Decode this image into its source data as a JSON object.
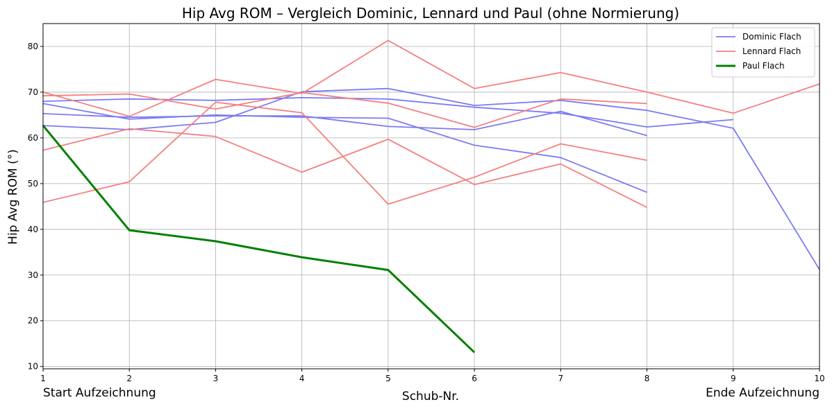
{
  "chart_data": {
    "type": "line",
    "title": "Hip Avg ROM – Vergleich Dominic, Lennard und Paul (ohne Normierung)",
    "xlabel": "Schub-Nr.",
    "ylabel": "Hip Avg ROM (°)",
    "xlim": [
      1,
      10
    ],
    "ylim": [
      9.5,
      85
    ],
    "xticks": [
      "1",
      "2",
      "3",
      "4",
      "5",
      "6",
      "7",
      "8",
      "9",
      "10"
    ],
    "yticks": [
      "10",
      "20",
      "30",
      "40",
      "50",
      "60",
      "70",
      "80"
    ],
    "grid": true,
    "legend_position": "top-right",
    "annotations": {
      "start": "Start Aufzeichnung",
      "end": "Ende Aufzeichnung"
    },
    "legend": [
      {
        "label": "Dominic Flach",
        "color": "#7b7bf5",
        "width": 1.8
      },
      {
        "label": "Lennard Flach",
        "color": "#f57f7f",
        "width": 1.8
      },
      {
        "label": "Paul Flach",
        "color": "#008000",
        "width": 3
      }
    ],
    "series": [
      {
        "name": "Dominic Flach",
        "color": "#7b7bf5",
        "width": 1.8,
        "x": [
          1,
          2,
          3,
          4,
          5,
          6,
          7,
          8,
          9,
          10
        ],
        "y": [
          68.0,
          68.5,
          68.2,
          68.8,
          68.5,
          66.7,
          65.4,
          62.4,
          64.0,
          null
        ]
      },
      {
        "name": "",
        "color": "#7b7bf5",
        "width": 1.8,
        "x": [
          1,
          2,
          3,
          4,
          5,
          6,
          7,
          8,
          9,
          10
        ],
        "y": [
          67.5,
          64.1,
          65.0,
          64.5,
          64.3,
          58.4,
          55.7,
          48.1,
          null,
          null
        ]
      },
      {
        "name": "",
        "color": "#7b7bf5",
        "width": 1.8,
        "x": [
          1,
          2,
          3,
          4,
          5,
          6,
          7,
          8,
          9,
          10
        ],
        "y": [
          65.3,
          64.5,
          64.8,
          64.8,
          62.5,
          61.8,
          65.8,
          60.5,
          null,
          null
        ]
      },
      {
        "name": "",
        "color": "#7b7bf5",
        "width": 1.8,
        "x": [
          1,
          2,
          3,
          4,
          5,
          6,
          7,
          8,
          9,
          10
        ],
        "y": [
          62.7,
          61.8,
          63.4,
          70.1,
          70.8,
          67.1,
          68.2,
          66.0,
          62.1,
          31.2
        ]
      },
      {
        "name": "Lennard Flach",
        "color": "#f57f7f",
        "width": 1.8,
        "x": [
          1,
          2,
          3,
          4,
          5,
          6,
          7,
          8,
          9,
          10
        ],
        "y": [
          69.2,
          69.6,
          66.3,
          69.9,
          67.6,
          62.3,
          68.5,
          67.5,
          null,
          null
        ]
      },
      {
        "name": "",
        "color": "#f57f7f",
        "width": 1.8,
        "x": [
          1,
          2,
          3,
          4,
          5,
          6,
          7,
          8,
          9,
          10
        ],
        "y": [
          70.0,
          64.7,
          72.8,
          69.7,
          81.3,
          70.8,
          74.3,
          70.0,
          65.4,
          71.8
        ]
      },
      {
        "name": "",
        "color": "#f57f7f",
        "width": 1.8,
        "x": [
          1,
          2,
          3,
          4,
          5,
          6,
          7,
          8,
          9,
          10
        ],
        "y": [
          57.3,
          62.0,
          60.3,
          52.5,
          59.7,
          49.8,
          54.3,
          44.8,
          null,
          null
        ]
      },
      {
        "name": "",
        "color": "#f57f7f",
        "width": 1.8,
        "x": [
          1,
          2,
          3,
          4,
          5,
          6,
          7,
          8,
          9,
          10
        ],
        "y": [
          45.9,
          50.4,
          67.8,
          65.5,
          45.5,
          51.4,
          58.7,
          55.1,
          null,
          null
        ]
      },
      {
        "name": "Paul Flach",
        "color": "#008000",
        "width": 3,
        "x": [
          1,
          2,
          3,
          4,
          5,
          6,
          7,
          8,
          9,
          10
        ],
        "y": [
          62.7,
          39.8,
          37.4,
          33.9,
          31.1,
          13.1,
          null,
          null,
          null,
          null
        ]
      }
    ]
  }
}
